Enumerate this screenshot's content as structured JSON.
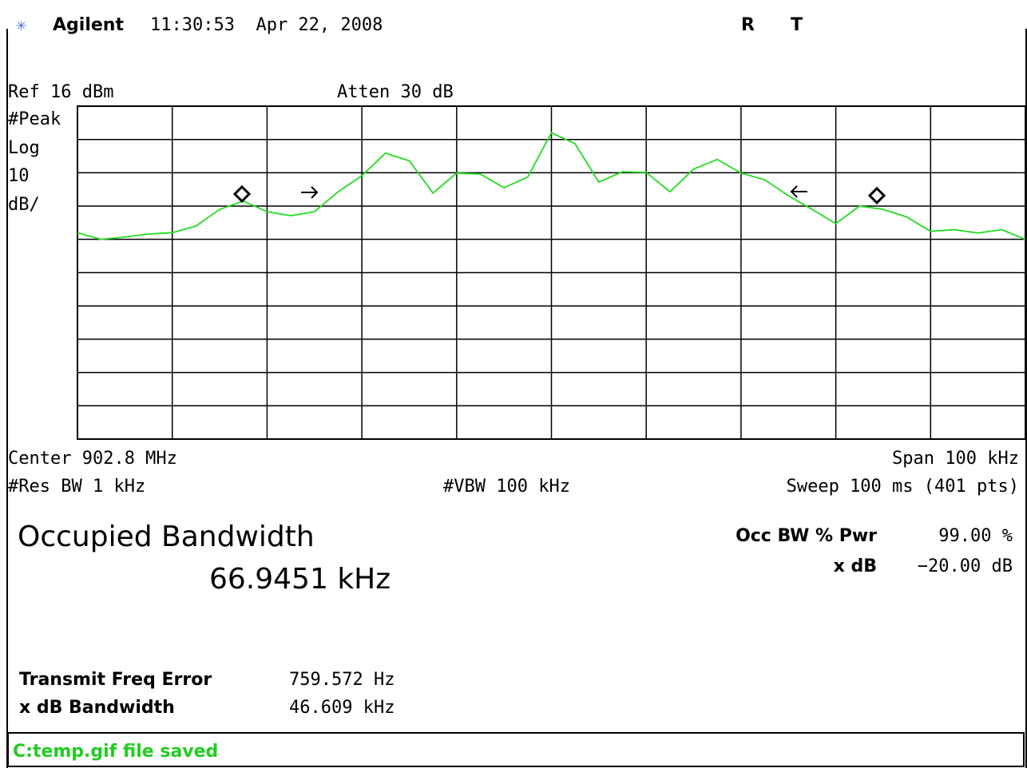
{
  "header": {
    "brand": "Agilent",
    "timestamp": "11:30:53  Apr 22, 2008",
    "flag_r": "R",
    "flag_t": "T"
  },
  "settings": {
    "ref": "Ref 16 dBm",
    "atten": "Atten 30 dB",
    "detector": "#Peak",
    "scale_type": "Log",
    "scale_value": "10",
    "scale_unit": "dB/",
    "center": "Center 902.8 MHz",
    "span": "Span 100 kHz",
    "res_bw": "#Res BW 1 kHz",
    "vbw": "#VBW 100 kHz",
    "sweep": "Sweep 100 ms (401 pts)"
  },
  "results": {
    "title": "Occupied Bandwidth",
    "value": "66.9451 kHz",
    "occ_label": "Occ BW % Pwr",
    "occ_value": "99.00 %",
    "xdb_label": "x dB",
    "xdb_value": "−20.00 dB",
    "tfe_label": "Transmit Freq Error",
    "tfe_value": "759.572 Hz",
    "xbw_label": "x dB Bandwidth",
    "xbw_value": "46.609 kHz"
  },
  "status": "C:temp.gif file saved",
  "chart_data": {
    "type": "line",
    "color": "#22dd22",
    "grid": true,
    "xlim": [
      902.75,
      902.85
    ],
    "ylim": [
      -84,
      16
    ],
    "x": [
      902.75,
      902.7525,
      902.755,
      902.7575,
      902.76,
      902.7625,
      902.765,
      902.7675,
      902.77,
      902.7725,
      902.775,
      902.7775,
      902.78,
      902.7825,
      902.785,
      902.7875,
      902.79,
      902.7925,
      902.795,
      902.7975,
      902.8,
      902.8025,
      902.805,
      902.8075,
      902.81,
      902.8125,
      902.815,
      902.8175,
      902.82,
      902.8225,
      902.825,
      902.8275,
      902.83,
      902.8325,
      902.835,
      902.8375,
      902.84,
      902.8425,
      902.845,
      902.8475,
      902.85
    ],
    "values": [
      -22,
      -24,
      -23.3,
      -22.4,
      -22,
      -20,
      -15,
      -12.5,
      -15.7,
      -16.9,
      -15.7,
      -9.7,
      -4.9,
      1.9,
      -0.4,
      -10.1,
      -4.1,
      -4.4,
      -8.5,
      -5.3,
      8,
      4.7,
      -6.8,
      -3.7,
      -3.9,
      -9.7,
      -2.9,
      0,
      -4.1,
      -6.1,
      -10.9,
      -15,
      -19.3,
      -14,
      -15,
      -17.3,
      -21.6,
      -21.1,
      -22.1,
      -21.1,
      -24
    ]
  }
}
